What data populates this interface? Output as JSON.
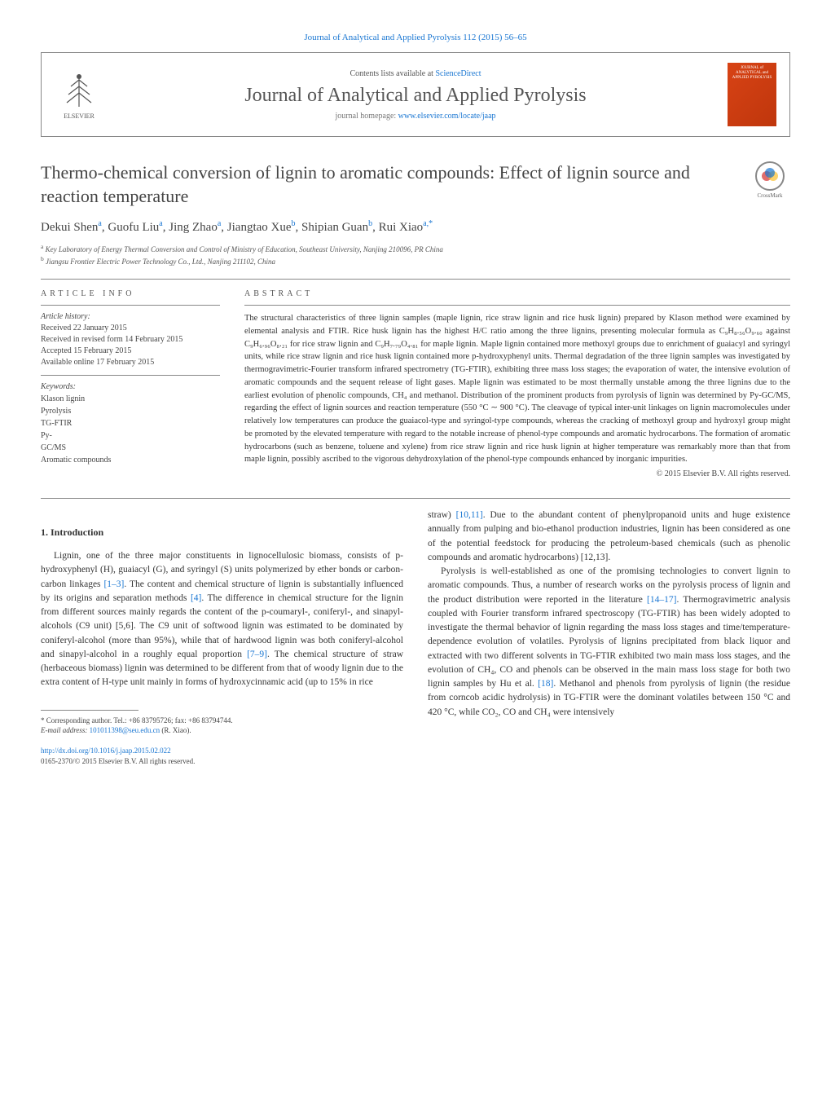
{
  "top_link": {
    "citation": "Journal of Analytical and Applied Pyrolysis 112 (2015) 56–65"
  },
  "header": {
    "contents_prefix": "Contents lists available at ",
    "contents_link": "ScienceDirect",
    "journal_name": "Journal of Analytical and Applied Pyrolysis",
    "homepage_prefix": "journal homepage: ",
    "homepage_url": "www.elsevier.com/locate/jaap",
    "publisher": "ELSEVIER",
    "cover_text": "JOURNAL of ANALYTICAL and APPLIED PYROLYSIS"
  },
  "crossmark_label": "CrossMark",
  "title": "Thermo-chemical conversion of lignin to aromatic compounds: Effect of lignin source and reaction temperature",
  "authors_html": "Dekui Shen<sup>a</sup>, Guofu Liu<sup>a</sup>, Jing Zhao<sup>a</sup>, Jiangtao Xue<sup>b</sup>, Shipian Guan<sup>b</sup>, Rui Xiao<sup>a,*</sup>",
  "affiliations": [
    {
      "sup": "a",
      "text": "Key Laboratory of Energy Thermal Conversion and Control of Ministry of Education, Southeast University, Nanjing 210096, PR China"
    },
    {
      "sup": "b",
      "text": "Jiangsu Frontier Electric Power Technology Co., Ltd., Nanjing 211102, China"
    }
  ],
  "article_info": {
    "heading": "ARTICLE INFO",
    "history_title": "Article history:",
    "history": [
      "Received 22 January 2015",
      "Received in revised form 14 February 2015",
      "Accepted 15 February 2015",
      "Available online 17 February 2015"
    ],
    "keywords_title": "Keywords:",
    "keywords": [
      "Klason lignin",
      "Pyrolysis",
      "TG-FTIR",
      "Py-",
      "GC/MS",
      "Aromatic compounds"
    ]
  },
  "abstract": {
    "heading": "ABSTRACT",
    "text": "The structural characteristics of three lignin samples (maple lignin, rice straw lignin and rice husk lignin) prepared by Klason method were examined by elemental analysis and FTIR. Rice husk lignin has the highest H/C ratio among the three lignins, presenting molecular formula as C₉H₈.₅₆O₉.₆₀ against C₉H₆.₉₆O₈.₂₁ for rice straw lignin and C₉H₇.₇₉O₄.₈₁ for maple lignin. Maple lignin contained more methoxyl groups due to enrichment of guaiacyl and syringyl units, while rice straw lignin and rice husk lignin contained more p-hydroxyphenyl units. Thermal degradation of the three lignin samples was investigated by thermogravimetric-Fourier transform infrared spectrometry (TG-FTIR), exhibiting three mass loss stages; the evaporation of water, the intensive evolution of aromatic compounds and the sequent release of light gases. Maple lignin was estimated to be most thermally unstable among the three lignins due to the earliest evolution of phenolic compounds, CH₄ and methanol. Distribution of the prominent products from pyrolysis of lignin was determined by Py-GC/MS, regarding the effect of lignin sources and reaction temperature (550 °C ∼ 900 °C). The cleavage of typical inter-unit linkages on lignin macromolecules under relatively low temperatures can produce the guaiacol-type and syringol-type compounds, whereas the cracking of methoxyl group and hydroxyl group might be promoted by the elevated temperature with regard to the notable increase of phenol-type compounds and aromatic hydrocarbons. The formation of aromatic hydrocarbons (such as benzene, toluene and xylene) from rice straw lignin and rice husk lignin at higher temperature was remarkably more than that from maple lignin, possibly ascribed to the vigorous dehydroxylation of the phenol-type compounds enhanced by inorganic impurities.",
    "copyright": "© 2015 Elsevier B.V. All rights reserved."
  },
  "section1_heading": "1. Introduction",
  "body": {
    "col1_p1": "Lignin, one of the three major constituents in lignocellulosic biomass, consists of p-hydroxyphenyl (H), guaiacyl (G), and syringyl (S) units polymerized by ether bonds or carbon-carbon linkages [1–3]. The content and chemical structure of lignin is substantially influenced by its origins and separation methods [4]. The difference in chemical structure for the lignin from different sources mainly regards the content of the p-coumaryl-, coniferyl-, and sinapyl-alcohols (C9 unit) [5,6]. The C9 unit of softwood lignin was estimated to be dominated by coniferyl-alcohol (more than 95%), while that of hardwood lignin was both coniferyl-alcohol and sinapyl-alcohol in a roughly equal proportion [7–9]. The chemical structure of straw (herbaceous biomass) lignin was determined to be different from that of woody lignin due to the extra content of H-type unit mainly in forms of hydroxycinnamic acid (up to 15% in rice",
    "col2_p1_prefix": "straw) ",
    "col2_p1_cite": "[10,11]",
    "col2_p1_rest": ". Due to the abundant content of phenylpropanoid units and huge existence annually from pulping and bio-ethanol production industries, lignin has been considered as one of the potential feedstock for producing the petroleum-based chemicals (such as phenolic compounds and aromatic hydrocarbons) [12,13].",
    "col2_p2": "Pyrolysis is well-established as one of the promising technologies to convert lignin to aromatic compounds. Thus, a number of research works on the pyrolysis process of lignin and the product distribution were reported in the literature [14–17]. Thermogravimetric analysis coupled with Fourier transform infrared spectroscopy (TG-FTIR) has been widely adopted to investigate the thermal behavior of lignin regarding the mass loss stages and time/temperature-dependence evolution of volatiles. Pyrolysis of lignins precipitated from black liquor and extracted with two different solvents in TG-FTIR exhibited two main mass loss stages, and the evolution of CH₄, CO and phenols can be observed in the main mass loss stage for both two lignin samples by Hu et al. [18]. Methanol and phenols from pyrolysis of lignin (the residue from corncob acidic hydrolysis) in TG-FTIR were the dominant volatiles between 150 °C and 420 °C, while CO₂, CO and CH₄ were intensively"
  },
  "corresponding": {
    "label": "* Corresponding author. Tel.: +86 83795726; fax: +86 83794744.",
    "email_label": "E-mail address: ",
    "email": "101011398@seu.edu.cn",
    "email_name": " (R. Xiao)."
  },
  "doi": {
    "url": "http://dx.doi.org/10.1016/j.jaap.2015.02.022",
    "copyright": "0165-2370/© 2015 Elsevier B.V. All rights reserved."
  },
  "colors": {
    "link": "#1976d2",
    "cover_bg1": "#d84315",
    "cover_bg2": "#bf360c",
    "text": "#333",
    "muted": "#555",
    "border": "#888"
  }
}
